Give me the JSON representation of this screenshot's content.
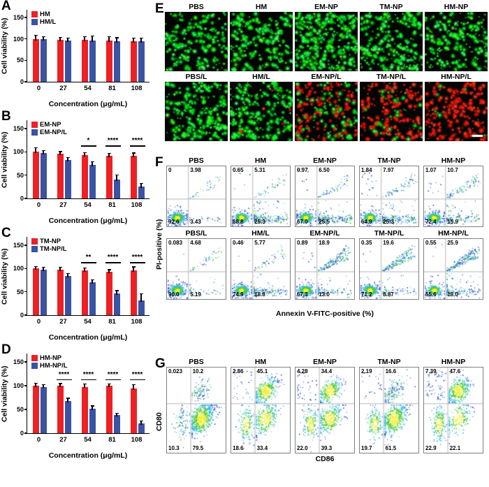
{
  "colors": {
    "bar_red": "#ed2024",
    "bar_blue": "#3a53a4",
    "live_green": "#2ee04a",
    "dead_red": "#ff2d1e"
  },
  "chart_data": [
    {
      "panel": "A",
      "type": "bar",
      "categories": [
        "0",
        "27",
        "54",
        "81",
        "108"
      ],
      "series": [
        {
          "name": "HM",
          "color": "#ed2024",
          "values": [
            100,
            98,
            98,
            96,
            94
          ],
          "errors": [
            8,
            5,
            7,
            9,
            7
          ]
        },
        {
          "name": "HM/L",
          "color": "#3a53a4",
          "values": [
            99,
            96,
            96,
            94,
            95
          ],
          "errors": [
            6,
            5,
            10,
            8,
            6
          ]
        }
      ],
      "ylabel": "Cell viability (%)",
      "xlabel": "Concentration (μg/mL)",
      "ylim": [
        0,
        150
      ],
      "yticks": [
        0,
        50,
        100,
        150
      ],
      "significance": []
    },
    {
      "panel": "B",
      "type": "bar",
      "categories": [
        "0",
        "27",
        "54",
        "81",
        "108"
      ],
      "series": [
        {
          "name": "EM-NP",
          "color": "#ed2024",
          "values": [
            100,
            96,
            93,
            92,
            91
          ],
          "errors": [
            8,
            4,
            5,
            4,
            6
          ]
        },
        {
          "name": "EM-NP/L",
          "color": "#3a53a4",
          "values": [
            97,
            83,
            72,
            41,
            25
          ],
          "errors": [
            5,
            4,
            6,
            9,
            7
          ]
        }
      ],
      "ylabel": "Cell viability (%)",
      "xlabel": "Concentration (μg/mL)",
      "ylim": [
        0,
        150
      ],
      "yticks": [
        0,
        50,
        100,
        150
      ],
      "significance": [
        {
          "index": 2,
          "label": "*"
        },
        {
          "index": 3,
          "label": "****"
        },
        {
          "index": 4,
          "label": "****"
        }
      ]
    },
    {
      "panel": "C",
      "type": "bar",
      "categories": [
        "0",
        "27",
        "54",
        "81",
        "108"
      ],
      "series": [
        {
          "name": "TM-NP",
          "color": "#ed2024",
          "values": [
            100,
            97,
            96,
            93,
            96
          ],
          "errors": [
            4,
            5,
            5,
            4,
            7
          ]
        },
        {
          "name": "TM-NP/L",
          "color": "#3a53a4",
          "values": [
            98,
            84,
            70,
            46,
            31
          ],
          "errors": [
            4,
            5,
            5,
            6,
            14
          ]
        }
      ],
      "ylabel": "Cell viability (%)",
      "xlabel": "Concentration (μg/mL)",
      "ylim": [
        0,
        150
      ],
      "yticks": [
        0,
        50,
        100,
        150
      ],
      "significance": [
        {
          "index": 2,
          "label": "**"
        },
        {
          "index": 3,
          "label": "****"
        },
        {
          "index": 4,
          "label": "****"
        }
      ]
    },
    {
      "panel": "D",
      "type": "bar",
      "categories": [
        "0",
        "27",
        "54",
        "81",
        "108"
      ],
      "series": [
        {
          "name": "HM-NP",
          "color": "#ed2024",
          "values": [
            100,
            100,
            98,
            100,
            94
          ],
          "errors": [
            5,
            4,
            5,
            3,
            8
          ]
        },
        {
          "name": "HM-NP/L",
          "color": "#3a53a4",
          "values": [
            98,
            68,
            51,
            38,
            20
          ],
          "errors": [
            4,
            5,
            6,
            4,
            5
          ]
        }
      ],
      "ylabel": "Cell viability (%)",
      "xlabel": "Concentration (μg/mL)",
      "ylim": [
        0,
        150
      ],
      "yticks": [
        0,
        50,
        100,
        150
      ],
      "significance": [
        {
          "index": 1,
          "label": "****"
        },
        {
          "index": 2,
          "label": "****"
        },
        {
          "index": 3,
          "label": "****"
        },
        {
          "index": 4,
          "label": "****"
        }
      ]
    }
  ],
  "microscopy": {
    "panel": "E",
    "rows": [
      {
        "labels": [
          "PBS",
          "HM",
          "EM-NP",
          "TM-NP",
          "HM-NP"
        ],
        "tiles": [
          {
            "green": 180,
            "red": 0
          },
          {
            "green": 190,
            "red": 0
          },
          {
            "green": 300,
            "red": 0
          },
          {
            "green": 220,
            "red": 0
          },
          {
            "green": 190,
            "red": 0
          }
        ]
      },
      {
        "labels": [
          "PBS/L",
          "HM/L",
          "EM-NP/L",
          "TM-NP/L",
          "HM-NP/L"
        ],
        "tiles": [
          {
            "green": 200,
            "red": 0
          },
          {
            "green": 190,
            "red": 5
          },
          {
            "green": 90,
            "red": 130
          },
          {
            "green": 40,
            "red": 170
          },
          {
            "green": 8,
            "red": 230,
            "scalebar": true
          }
        ]
      }
    ]
  },
  "flow_apoptosis": {
    "panel": "F",
    "ylabel": "PI-positive (%)",
    "xlabel": "Annexin V-FITC-positive (%)",
    "rows": [
      [
        {
          "title": "PBS",
          "ul": "0",
          "ur": "3.98",
          "ll": "92.6",
          "lr": "3.43"
        },
        {
          "title": "HM",
          "ul": "0.65",
          "ur": "5.31",
          "ll": "68.8",
          "lr": "25.3"
        },
        {
          "title": "EM-NP",
          "ul": "0.97",
          "ur": "6.50",
          "ll": "67.0",
          "lr": "25.5"
        },
        {
          "title": "TM-NP",
          "ul": "1.84",
          "ur": "7.97",
          "ll": "64.9",
          "lr": "25.3"
        },
        {
          "title": "HM-NP",
          "ul": "1.07",
          "ur": "10.7",
          "ll": "72.4",
          "lr": "15.9"
        }
      ],
      [
        {
          "title": "PBS/L",
          "ul": "0.083",
          "ur": "4.68",
          "ll": "90.0",
          "lr": "5.19"
        },
        {
          "title": "HM/L",
          "ul": "0.46",
          "ur": "5.77",
          "ll": "74.9",
          "lr": "18.8"
        },
        {
          "title": "EM-NP/L",
          "ul": "0.89",
          "ur": "18.9",
          "ll": "67.3",
          "lr": "13.0"
        },
        {
          "title": "TM-NP/L",
          "ul": "0.35",
          "ur": "19.6",
          "ll": "71.2",
          "lr": "8.87"
        },
        {
          "title": "HM-NP/L",
          "ul": "0.55",
          "ur": "25.9",
          "ll": "55.6",
          "lr": "18.0"
        }
      ]
    ]
  },
  "flow_activation": {
    "panel": "G",
    "ylabel": "CD80",
    "xlabel": "CD86",
    "plots": [
      {
        "title": "PBS",
        "ul": "0.023",
        "ur": "10.2",
        "ll": "10.3",
        "lr": "79.5"
      },
      {
        "title": "HM",
        "ul": "2.86",
        "ur": "45.1",
        "ll": "18.6",
        "lr": "33.4"
      },
      {
        "title": "EM-NP",
        "ul": "4.28",
        "ur": "34.4",
        "ll": "22.0",
        "lr": "39.3"
      },
      {
        "title": "TM-NP",
        "ul": "2.19",
        "ur": "16.6",
        "ll": "19.7",
        "lr": "61.5"
      },
      {
        "title": "HM-NP",
        "ul": "7.39",
        "ur": "47.6",
        "ll": "22.9",
        "lr": "22.1"
      }
    ]
  }
}
